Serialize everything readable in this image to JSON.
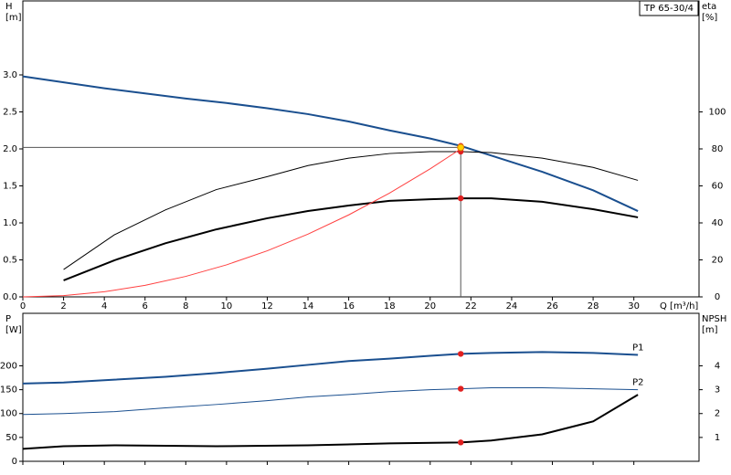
{
  "chart_data": [
    {
      "type": "line",
      "annotation": "TP 65-30/4",
      "ylabel": [
        "H",
        "[m]"
      ],
      "y2label": [
        "eta",
        "[%]"
      ],
      "xlabel": "Q [m³/h]",
      "xlim": [
        0,
        33.2
      ],
      "xticks": [
        0,
        2,
        4,
        6,
        8,
        10,
        12,
        14,
        16,
        18,
        20,
        22,
        24,
        26,
        28,
        30
      ],
      "show_xtick_labels": true,
      "ylim": [
        0,
        4.0
      ],
      "yticks": [
        {
          "value": 0,
          "label": "0.0"
        },
        {
          "value": 0.5,
          "label": "0.5"
        },
        {
          "value": 1,
          "label": "1.0"
        },
        {
          "value": 1.5,
          "label": "1.5"
        },
        {
          "value": 2,
          "label": "2.0"
        },
        {
          "value": 2.5,
          "label": "2.5"
        },
        {
          "value": 3,
          "label": "3.0"
        }
      ],
      "y2lim": [
        0,
        160
      ],
      "y2ticks": [
        0,
        20,
        40,
        60,
        80,
        100
      ],
      "duty_point": {
        "q": 21.5,
        "h": 2.02
      },
      "series": [
        {
          "color": "#1a4f8f",
          "width": 2,
          "axis": "y",
          "marker_index": 11,
          "x": [
            0,
            2,
            4,
            6,
            8,
            10,
            12,
            14,
            16,
            18,
            20,
            21.5,
            23,
            25.5,
            28,
            30.2
          ],
          "values": [
            2.98,
            2.9,
            2.82,
            2.75,
            2.68,
            2.62,
            2.55,
            2.47,
            2.37,
            2.25,
            2.14,
            2.04,
            1.91,
            1.69,
            1.44,
            1.16
          ]
        },
        {
          "color": "#000000",
          "width": 1,
          "axis": "y2",
          "marker_index": 9,
          "x": [
            2,
            4.5,
            7,
            9.5,
            12,
            14,
            16,
            18,
            20,
            21.5,
            23,
            25.5,
            28,
            30.2
          ],
          "values": [
            14.8,
            33.6,
            47,
            58,
            65,
            71,
            75,
            77.5,
            78.5,
            78.5,
            78,
            75,
            70,
            63
          ]
        },
        {
          "color": "#000000",
          "width": 2,
          "axis": "y2",
          "marker_index": 9,
          "x": [
            2,
            4.5,
            7,
            9.5,
            12,
            14,
            16,
            18,
            20,
            21.5,
            23,
            25.5,
            28,
            30.2
          ],
          "values": [
            8.9,
            19.8,
            29,
            36.5,
            42.5,
            46.4,
            49.4,
            51.9,
            52.8,
            53.3,
            53.3,
            51.4,
            47.4,
            43
          ]
        },
        {
          "color": "#ff4040",
          "width": 1,
          "axis": "y",
          "x": [
            0,
            2,
            4,
            6,
            8,
            10,
            12,
            14,
            16,
            18,
            20,
            21.5
          ],
          "values": [
            0,
            0.017,
            0.069,
            0.156,
            0.277,
            0.433,
            0.623,
            0.848,
            1.108,
            1.402,
            1.731,
            2.0
          ]
        }
      ]
    },
    {
      "type": "line",
      "ylabel": [
        "P",
        "[W]"
      ],
      "y2label": [
        "NPSH",
        "[m]"
      ],
      "xlim": [
        0,
        33.2
      ],
      "xticks": [
        0,
        2,
        4,
        6,
        8,
        10,
        12,
        14,
        16,
        18,
        20,
        22,
        24,
        26,
        28,
        30
      ],
      "show_xtick_labels": false,
      "ylim": [
        0,
        310
      ],
      "yticks": [
        0,
        50,
        100,
        150,
        200
      ],
      "y2lim": [
        0,
        6.2
      ],
      "y2ticks": [
        1,
        2,
        3,
        4
      ],
      "series": [
        {
          "name": "P1",
          "color": "#1a4f8f",
          "width": 2,
          "axis": "y",
          "marker_index": 10,
          "x": [
            0,
            2,
            4.5,
            7,
            9.5,
            12,
            14,
            16,
            18,
            20,
            21.5,
            23,
            25.5,
            28,
            30.2
          ],
          "values": [
            163,
            165,
            171,
            177,
            185,
            194,
            202,
            210,
            215,
            221,
            225,
            227,
            229,
            227,
            223
          ]
        },
        {
          "name": "P2",
          "color": "#1a4f8f",
          "width": 1,
          "axis": "y",
          "marker_index": 10,
          "x": [
            0,
            2,
            4.5,
            7,
            9.5,
            12,
            14,
            16,
            18,
            20,
            21.5,
            23,
            25.5,
            28,
            30.2
          ],
          "values": [
            98,
            100,
            104,
            112,
            119,
            127,
            135,
            140,
            146,
            150,
            152,
            154,
            154,
            152,
            150
          ]
        },
        {
          "color": "#000000",
          "width": 2,
          "axis": "y2",
          "marker_index": 6,
          "x": [
            0,
            2,
            4.5,
            9.5,
            14,
            18,
            21.5,
            23,
            25.5,
            28,
            30.2
          ],
          "values": [
            0.52,
            0.63,
            0.67,
            0.63,
            0.67,
            0.75,
            0.79,
            0.87,
            1.13,
            1.67,
            2.79
          ]
        }
      ]
    }
  ]
}
